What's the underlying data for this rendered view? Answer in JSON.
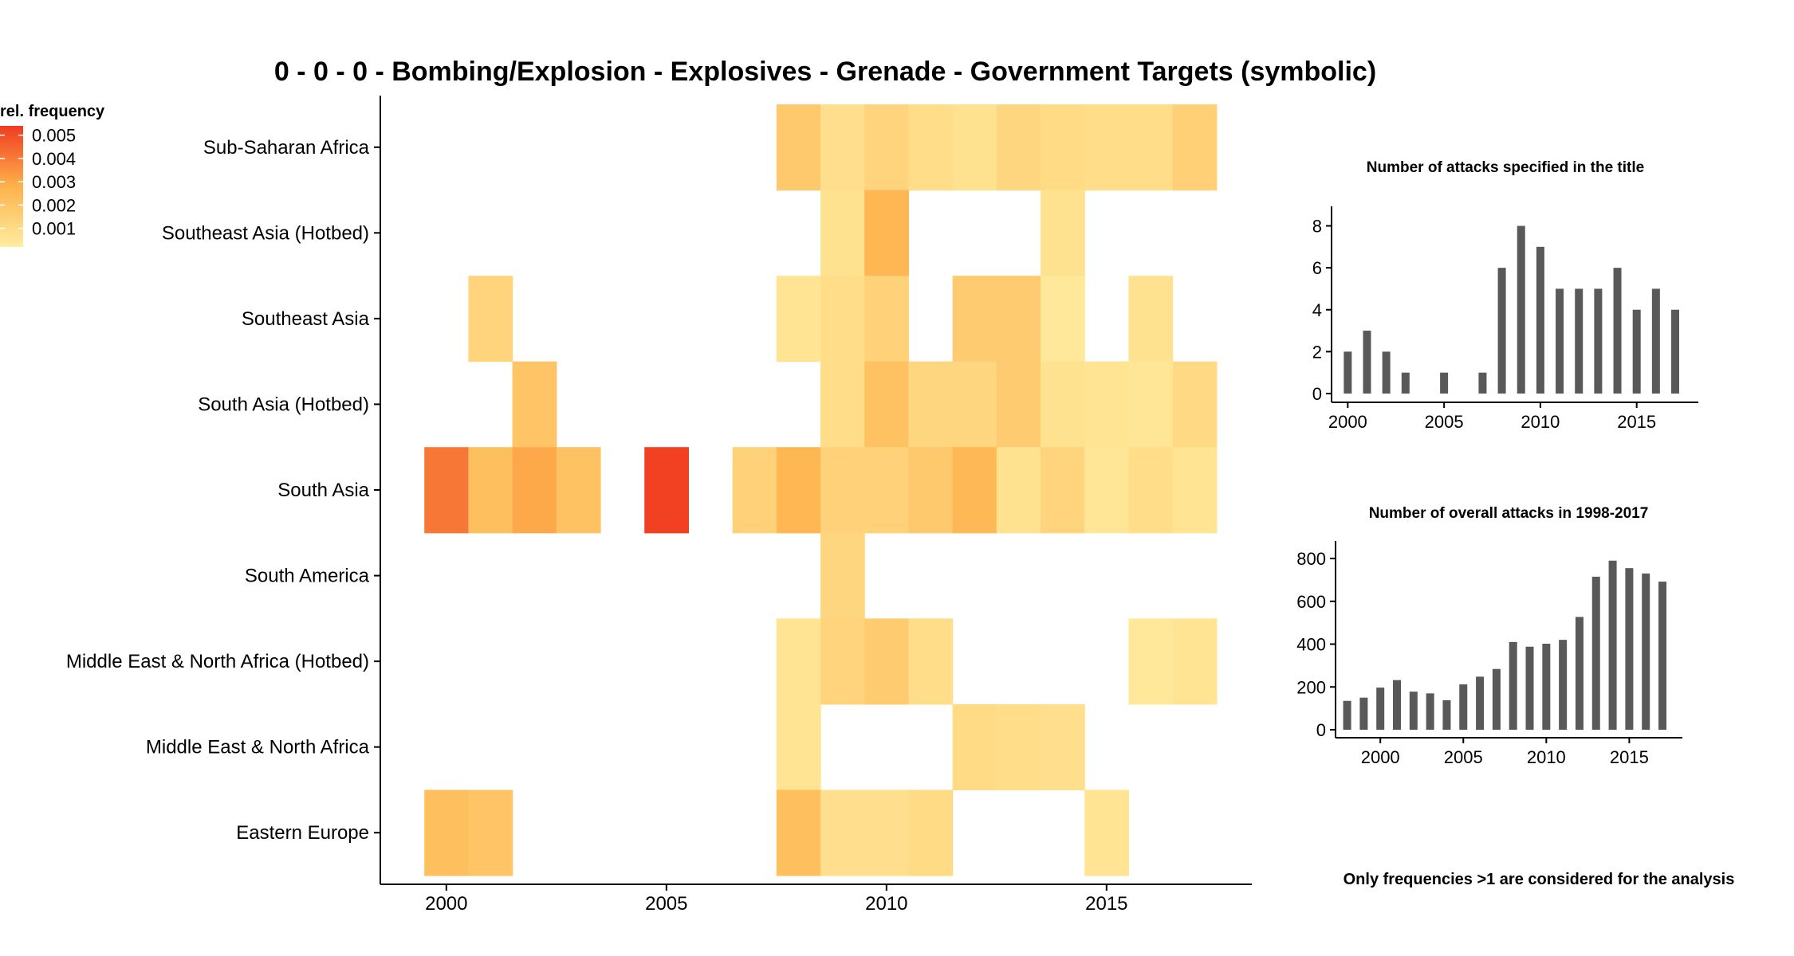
{
  "chart_data": [
    {
      "type": "heatmap",
      "title": "0 - 0 - 0 - Bombing/Explosion - Explosives - Grenade - Government Targets (symbolic)",
      "xlabel": "",
      "ylabel": "",
      "xlim": [
        1998.5,
        2018.3
      ],
      "x_ticks": [
        2000,
        2005,
        2010,
        2015
      ],
      "rows": [
        "Sub-Saharan Africa",
        "Southeast Asia (Hotbed)",
        "Southeast Asia",
        "South Asia (Hotbed)",
        "South Asia",
        "South America",
        "Middle East & North Africa (Hotbed)",
        "Middle East & North Africa",
        "Eastern Europe"
      ],
      "legend": {
        "title": "rel. frequency",
        "placement": "top-left",
        "ticks": [
          0.005,
          0.004,
          0.003,
          0.002,
          0.001
        ],
        "labels": [
          "0.005",
          "0.004",
          "0.003",
          "0.002",
          "0.001"
        ],
        "color_low": "#ffeda0",
        "color_high": "#f03b20",
        "range": [
          0.0002,
          0.0054
        ]
      },
      "cells": [
        {
          "region": "Sub-Saharan Africa",
          "year": 2008,
          "value": 0.0018
        },
        {
          "region": "Sub-Saharan Africa",
          "year": 2009,
          "value": 0.0008
        },
        {
          "region": "Sub-Saharan Africa",
          "year": 2010,
          "value": 0.0013
        },
        {
          "region": "Sub-Saharan Africa",
          "year": 2011,
          "value": 0.0009
        },
        {
          "region": "Sub-Saharan Africa",
          "year": 2012,
          "value": 0.0007
        },
        {
          "region": "Sub-Saharan Africa",
          "year": 2013,
          "value": 0.0012
        },
        {
          "region": "Sub-Saharan Africa",
          "year": 2014,
          "value": 0.001
        },
        {
          "region": "Sub-Saharan Africa",
          "year": 2015,
          "value": 0.0009
        },
        {
          "region": "Sub-Saharan Africa",
          "year": 2016,
          "value": 0.0009
        },
        {
          "region": "Sub-Saharan Africa",
          "year": 2017,
          "value": 0.0015
        },
        {
          "region": "Southeast Asia (Hotbed)",
          "year": 2009,
          "value": 0.0007
        },
        {
          "region": "Southeast Asia (Hotbed)",
          "year": 2010,
          "value": 0.0026
        },
        {
          "region": "Southeast Asia (Hotbed)",
          "year": 2014,
          "value": 0.0007
        },
        {
          "region": "Southeast Asia",
          "year": 2001,
          "value": 0.0013
        },
        {
          "region": "Southeast Asia",
          "year": 2008,
          "value": 0.0006
        },
        {
          "region": "Southeast Asia",
          "year": 2009,
          "value": 0.0009
        },
        {
          "region": "Southeast Asia",
          "year": 2010,
          "value": 0.0014
        },
        {
          "region": "Southeast Asia",
          "year": 2012,
          "value": 0.0017
        },
        {
          "region": "Southeast Asia",
          "year": 2013,
          "value": 0.0017
        },
        {
          "region": "Southeast Asia",
          "year": 2014,
          "value": 0.0004
        },
        {
          "region": "Southeast Asia",
          "year": 2016,
          "value": 0.0007
        },
        {
          "region": "South Asia (Hotbed)",
          "year": 2002,
          "value": 0.002
        },
        {
          "region": "South Asia (Hotbed)",
          "year": 2009,
          "value": 0.0009
        },
        {
          "region": "South Asia (Hotbed)",
          "year": 2010,
          "value": 0.0021
        },
        {
          "region": "South Asia (Hotbed)",
          "year": 2011,
          "value": 0.0012
        },
        {
          "region": "South Asia (Hotbed)",
          "year": 2012,
          "value": 0.0012
        },
        {
          "region": "South Asia (Hotbed)",
          "year": 2013,
          "value": 0.0017
        },
        {
          "region": "South Asia (Hotbed)",
          "year": 2014,
          "value": 0.0007
        },
        {
          "region": "South Asia (Hotbed)",
          "year": 2015,
          "value": 0.0006
        },
        {
          "region": "South Asia (Hotbed)",
          "year": 2016,
          "value": 0.0005
        },
        {
          "region": "South Asia (Hotbed)",
          "year": 2017,
          "value": 0.0011
        },
        {
          "region": "South Asia",
          "year": 2000,
          "value": 0.0041
        },
        {
          "region": "South Asia",
          "year": 2001,
          "value": 0.0022
        },
        {
          "region": "South Asia",
          "year": 2002,
          "value": 0.003
        },
        {
          "region": "South Asia",
          "year": 2003,
          "value": 0.0021
        },
        {
          "region": "South Asia",
          "year": 2005,
          "value": 0.0053
        },
        {
          "region": "South Asia",
          "year": 2007,
          "value": 0.0014
        },
        {
          "region": "South Asia",
          "year": 2008,
          "value": 0.0026
        },
        {
          "region": "South Asia",
          "year": 2009,
          "value": 0.0014
        },
        {
          "region": "South Asia",
          "year": 2010,
          "value": 0.0014
        },
        {
          "region": "South Asia",
          "year": 2011,
          "value": 0.0018
        },
        {
          "region": "South Asia",
          "year": 2012,
          "value": 0.0025
        },
        {
          "region": "South Asia",
          "year": 2013,
          "value": 0.0007
        },
        {
          "region": "South Asia",
          "year": 2014,
          "value": 0.0013
        },
        {
          "region": "South Asia",
          "year": 2015,
          "value": 0.0005
        },
        {
          "region": "South Asia",
          "year": 2016,
          "value": 0.0009
        },
        {
          "region": "South Asia",
          "year": 2017,
          "value": 0.0006
        },
        {
          "region": "South America",
          "year": 2009,
          "value": 0.0012
        },
        {
          "region": "Middle East & North Africa (Hotbed)",
          "year": 2008,
          "value": 0.0006
        },
        {
          "region": "Middle East & North Africa (Hotbed)",
          "year": 2009,
          "value": 0.0013
        },
        {
          "region": "Middle East & North Africa (Hotbed)",
          "year": 2010,
          "value": 0.0017
        },
        {
          "region": "Middle East & North Africa (Hotbed)",
          "year": 2011,
          "value": 0.0009
        },
        {
          "region": "Middle East & North Africa (Hotbed)",
          "year": 2016,
          "value": 0.0004
        },
        {
          "region": "Middle East & North Africa (Hotbed)",
          "year": 2017,
          "value": 0.0006
        },
        {
          "region": "Middle East & North Africa",
          "year": 2008,
          "value": 0.0006
        },
        {
          "region": "Middle East & North Africa",
          "year": 2012,
          "value": 0.001
        },
        {
          "region": "Middle East & North Africa",
          "year": 2013,
          "value": 0.0009
        },
        {
          "region": "Middle East & North Africa",
          "year": 2014,
          "value": 0.0008
        },
        {
          "region": "Eastern Europe",
          "year": 2000,
          "value": 0.0022
        },
        {
          "region": "Eastern Europe",
          "year": 2001,
          "value": 0.002
        },
        {
          "region": "Eastern Europe",
          "year": 2008,
          "value": 0.0022
        },
        {
          "region": "Eastern Europe",
          "year": 2009,
          "value": 0.0008
        },
        {
          "region": "Eastern Europe",
          "year": 2010,
          "value": 0.0008
        },
        {
          "region": "Eastern Europe",
          "year": 2011,
          "value": 0.001
        },
        {
          "region": "Eastern Europe",
          "year": 2015,
          "value": 0.0006
        }
      ]
    },
    {
      "type": "bar",
      "title": "Number of attacks specified in the title",
      "xlabel": "",
      "ylabel": "",
      "x": [
        2000,
        2001,
        2002,
        2003,
        2005,
        2007,
        2008,
        2009,
        2010,
        2011,
        2012,
        2013,
        2014,
        2015,
        2016,
        2017
      ],
      "values": [
        2,
        3,
        2,
        1,
        1,
        1,
        6,
        8,
        7,
        5,
        5,
        5,
        6,
        4,
        5,
        4
      ],
      "ylim": [
        0,
        8.4
      ],
      "xlim": [
        1999.2,
        2018.2
      ],
      "y_ticks": [
        0,
        2,
        4,
        6,
        8
      ],
      "x_ticks": [
        2000,
        2005,
        2010,
        2015
      ],
      "bar_color": "#595959"
    },
    {
      "type": "bar",
      "title": "Number of overall attacks in 1998-2017",
      "xlabel": "",
      "ylabel": "",
      "x": [
        1998,
        1999,
        2000,
        2001,
        2002,
        2003,
        2004,
        2005,
        2006,
        2007,
        2008,
        2009,
        2010,
        2011,
        2012,
        2013,
        2014,
        2015,
        2016,
        2017
      ],
      "values": [
        135,
        150,
        197,
        232,
        178,
        170,
        138,
        212,
        248,
        284,
        410,
        388,
        402,
        420,
        527,
        715,
        790,
        755,
        730,
        692
      ],
      "ylim": [
        0,
        830
      ],
      "xlim": [
        1997.3,
        2018.2
      ],
      "y_ticks": [
        0,
        200,
        400,
        600,
        800
      ],
      "x_ticks": [
        2000,
        2005,
        2010,
        2015
      ],
      "bar_color": "#595959"
    }
  ],
  "footnote": "Only frequencies >1 are considered for the analysis"
}
